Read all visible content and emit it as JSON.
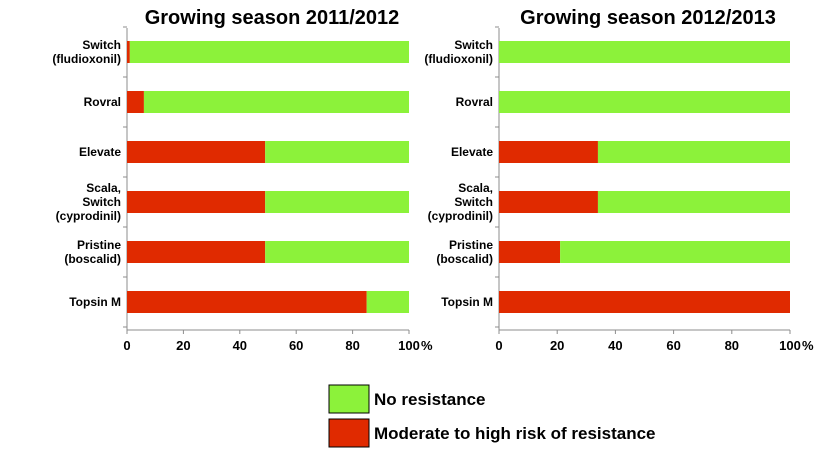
{
  "chart_data": [
    {
      "type": "bar",
      "orientation": "horizontal",
      "stacked": true,
      "title": "Growing season 2011/2012",
      "categories": [
        [
          "Switch",
          "(fludioxonil)"
        ],
        [
          "Rovral"
        ],
        [
          "Elevate"
        ],
        [
          "Scala,",
          "Switch",
          "(cyprodinil)"
        ],
        [
          "Pristine",
          "(boscalid)"
        ],
        [
          "Topsin M"
        ]
      ],
      "series": [
        {
          "name": "Moderate to high risk of resistance",
          "color": "#e02a00",
          "values": [
            1,
            6,
            49,
            49,
            49,
            85
          ]
        },
        {
          "name": "No resistance",
          "color": "#8cf23a",
          "values": [
            99,
            94,
            51,
            51,
            51,
            15
          ]
        }
      ],
      "xlim": [
        0,
        100
      ],
      "xticks": [
        "0",
        "20",
        "40",
        "60",
        "80",
        "100"
      ],
      "xtick_suffix": "%"
    },
    {
      "type": "bar",
      "orientation": "horizontal",
      "stacked": true,
      "title": "Growing season 2012/2013",
      "categories": [
        [
          "Switch",
          "(fludioxonil)"
        ],
        [
          "Rovral"
        ],
        [
          "Elevate"
        ],
        [
          "Scala,",
          "Switch",
          "(cyprodinil)"
        ],
        [
          "Pristine",
          "(boscalid)"
        ],
        [
          "Topsin M"
        ]
      ],
      "series": [
        {
          "name": "Moderate to high risk of resistance",
          "color": "#e02a00",
          "values": [
            0,
            0,
            34,
            34,
            21,
            100
          ]
        },
        {
          "name": "No resistance",
          "color": "#8cf23a",
          "values": [
            100,
            100,
            66,
            66,
            79,
            0
          ]
        }
      ],
      "xlim": [
        0,
        100
      ],
      "xticks": [
        "0",
        "20",
        "40",
        "60",
        "80",
        "100"
      ],
      "xtick_suffix": "%"
    }
  ],
  "legend": [
    {
      "label": "No resistance",
      "color": "#8cf23a"
    },
    {
      "label": "Moderate to high risk of resistance",
      "color": "#e02a00"
    }
  ]
}
